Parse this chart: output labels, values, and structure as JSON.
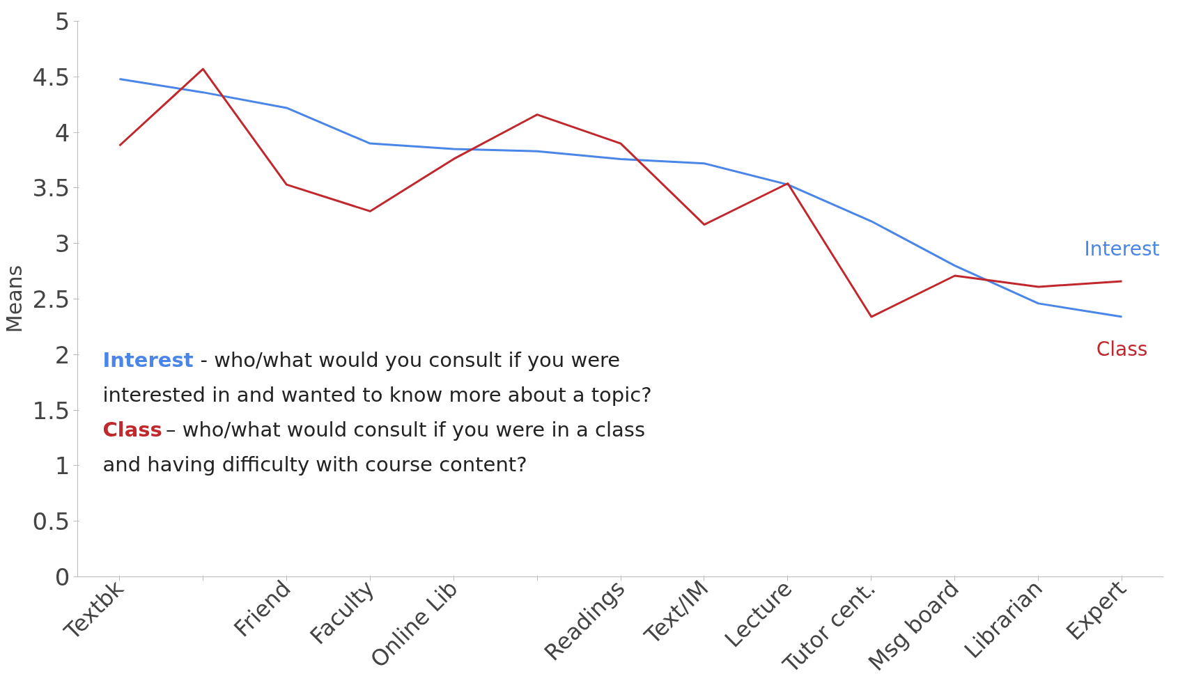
{
  "chart_data": {
    "type": "line",
    "ylabel": "Means",
    "categories": [
      "Textbk",
      null,
      "Friend",
      "Faculty",
      "Online Lib",
      null,
      "Readings",
      "Text/IM",
      "Lecture",
      "Tutor cent.",
      "Msg board",
      "Librarian",
      "Expert"
    ],
    "series": [
      {
        "name": "Interest",
        "color": "#4a86e8",
        "values": [
          4.48,
          4.36,
          4.22,
          3.9,
          3.85,
          3.83,
          3.76,
          3.72,
          3.53,
          3.2,
          2.8,
          2.46,
          2.34
        ]
      },
      {
        "name": "Class",
        "color": "#c0282d",
        "values": [
          3.88,
          4.57,
          3.53,
          3.29,
          3.76,
          4.16,
          3.9,
          3.17,
          3.54,
          2.34,
          2.71,
          2.61,
          2.66
        ]
      }
    ],
    "ylim": [
      0,
      5
    ],
    "yticks": [
      0,
      0.5,
      1,
      1.5,
      2,
      2.5,
      3,
      3.5,
      4,
      4.5,
      5
    ],
    "grid": false,
    "marker": "none",
    "line_style": "solid",
    "annotations": [
      "- who/what would you consult if you were interested in and wanted to know more about a topic?",
      "– who/what would consult if you were in a class and having difficulty with course content?",
      "Interest",
      "Class"
    ]
  }
}
